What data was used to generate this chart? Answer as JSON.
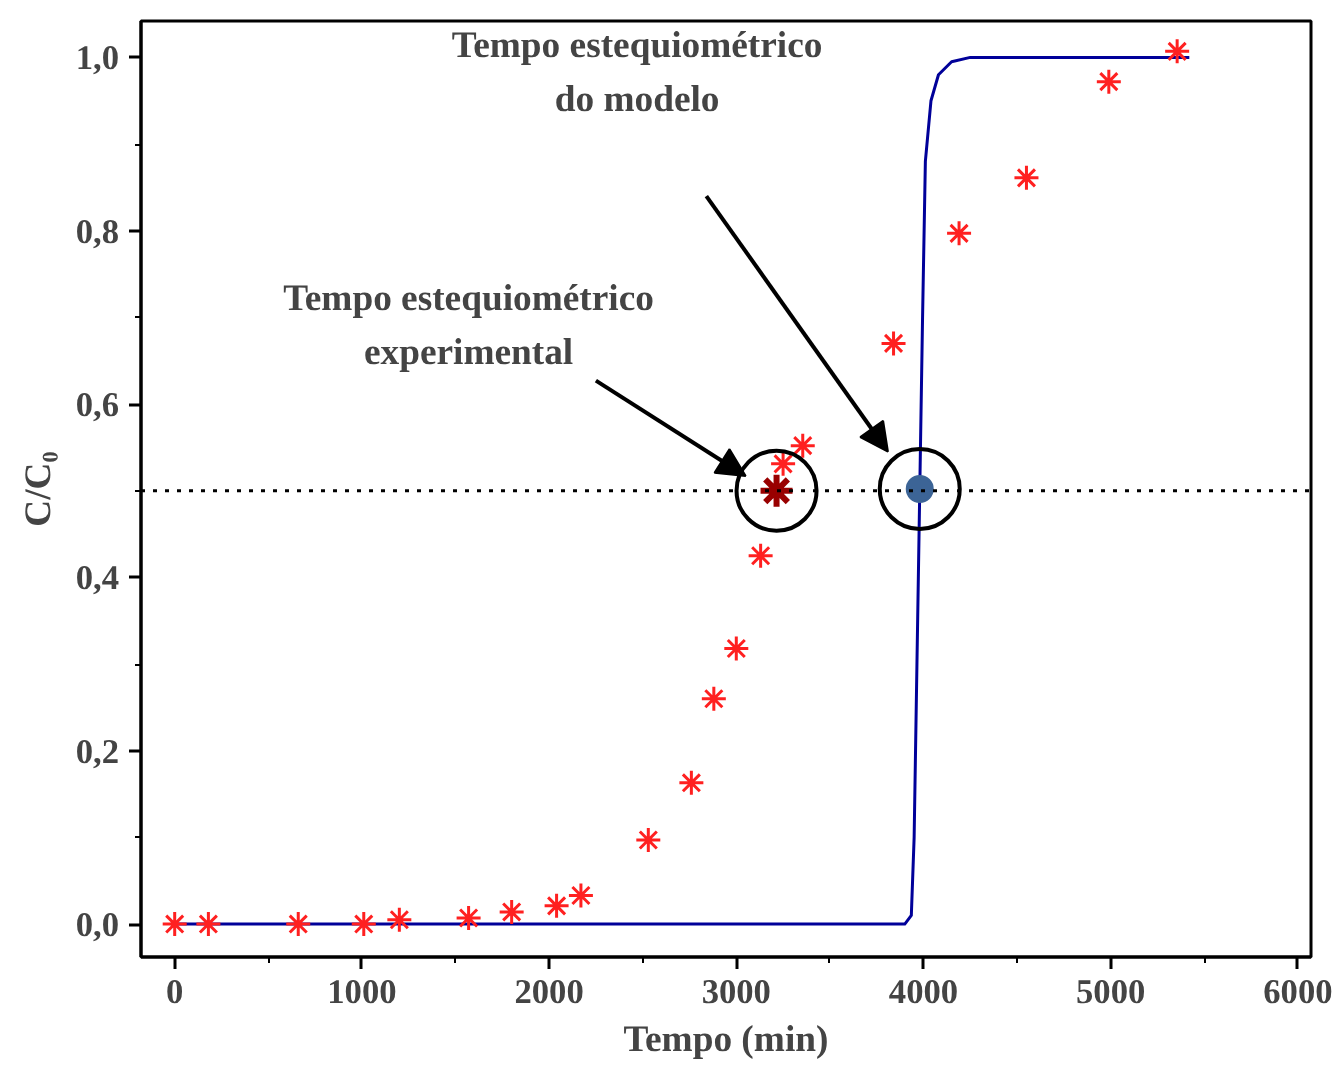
{
  "chart_data": {
    "type": "scatter",
    "xlabel": "Tempo (min)",
    "ylabel": "C/C₀",
    "xlim": [
      -180,
      6070
    ],
    "ylim": [
      -0.038,
      1.042
    ],
    "xticks": [
      0,
      1000,
      2000,
      3000,
      4000,
      5000,
      6000
    ],
    "yticks": [
      {
        "value": 0,
        "label": "0,0"
      },
      {
        "value": 0.2,
        "label": "0,2"
      },
      {
        "value": 0.4,
        "label": "0,4"
      },
      {
        "value": 0.6,
        "label": "0,6"
      },
      {
        "value": 0.8,
        "label": "0,8"
      },
      {
        "value": 1.0,
        "label": "1,0"
      }
    ],
    "grid": false,
    "series": [
      {
        "type": "line",
        "color": "#000099",
        "line_style": "solid",
        "x": [
          0,
          3900,
          3935,
          3950,
          3965,
          3980,
          3995,
          4010,
          4040,
          4080,
          4150,
          4250,
          5420
        ],
        "values": [
          0,
          0,
          0.01,
          0.1,
          0.3,
          0.5,
          0.7,
          0.88,
          0.95,
          0.98,
          0.995,
          1.0,
          1.0
        ]
      },
      {
        "type": "scatter",
        "color": "#ff2020",
        "marker": "cross",
        "x": [
          0,
          180,
          660,
          1010,
          1200,
          1570,
          1800,
          2040,
          2170,
          2530,
          2760,
          2880,
          3000,
          3130,
          3250,
          3355,
          3840,
          4190,
          4550,
          4990,
          5355
        ],
        "values": [
          0,
          0,
          0,
          0,
          0.005,
          0.007,
          0.014,
          0.021,
          0.033,
          0.097,
          0.163,
          0.26,
          0.318,
          0.425,
          0.531,
          0.552,
          0.67,
          0.797,
          0.861,
          0.972,
          1.007
        ]
      },
      {
        "type": "scatter",
        "color": "#990000",
        "marker": "cross",
        "x": [
          3215
        ],
        "values": [
          0.5
        ]
      },
      {
        "type": "scatter",
        "color": "#3c6496",
        "marker": "circle",
        "x": [
          3980
        ],
        "values": [
          0.502
        ]
      }
    ],
    "ref_lines": [
      {
        "axis": "y",
        "value": 0.5,
        "line_style": "dotted",
        "color": "#000000"
      }
    ],
    "annotations": [
      "Tempo estequiométrico\nexperimental",
      "Tempo estequiométrico\ndo modelo"
    ]
  }
}
